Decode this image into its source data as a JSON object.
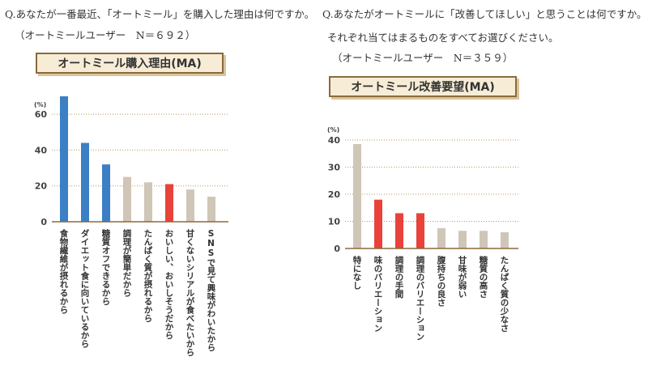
{
  "left": {
    "question": "Q.あなたが一番最近、「オートミール」を購入した理由は何ですか。",
    "respondents": "（オートミールユーザー　N＝６９２）",
    "chart_title": "オートミール購入理由(MA)"
  },
  "right": {
    "question": "Q.あなたがオートミールに「改善してほしい」と思うことは何ですか。",
    "instruction": "それぞれ当てはまるものをすべてお選びください。",
    "respondents": "（オートミールユーザー　N＝３５９）",
    "chart_title": "オートミール改善要望(MA)"
  },
  "chart_data": [
    {
      "type": "bar",
      "title": "オートミール購入理由(MA)",
      "unit": "(%)",
      "ylim": [
        0,
        70
      ],
      "yticks": [
        0,
        20,
        40,
        60
      ],
      "grid": true,
      "categories": [
        "食物繊維が摂れるから",
        "ダイエット食に向いているから",
        "糖質オフできるから",
        "調理が簡単だから",
        "たんぱく質が摂れるから",
        "おいしい、おいしそうだから",
        "甘くないシリアルが食べたいから",
        "SNSで見て興味がわいたから"
      ],
      "values": [
        70,
        44,
        32,
        25,
        22,
        21,
        18,
        14
      ],
      "colors": [
        "#3b7fc4",
        "#3b7fc4",
        "#3b7fc4",
        "#cfc6b7",
        "#cfc6b7",
        "#e8423a",
        "#cfc6b7",
        "#cfc6b7"
      ]
    },
    {
      "type": "bar",
      "title": "オートミール改善要望(MA)",
      "unit": "(%)",
      "ylim": [
        0,
        40
      ],
      "yticks": [
        0,
        10,
        20,
        30,
        40
      ],
      "grid": true,
      "categories": [
        "特になし",
        "味のバリエーション",
        "調理の手間",
        "調理のバリエーション",
        "腹持ちの良さ",
        "甘味が弱い",
        "糖質の高さ",
        "たんぱく質の少なさ"
      ],
      "values": [
        38.5,
        18,
        13,
        13,
        7.5,
        6.5,
        6.5,
        6
      ],
      "colors": [
        "#cfc6b7",
        "#e8423a",
        "#e8423a",
        "#e8423a",
        "#cfc6b7",
        "#cfc6b7",
        "#cfc6b7",
        "#cfc6b7"
      ]
    }
  ]
}
